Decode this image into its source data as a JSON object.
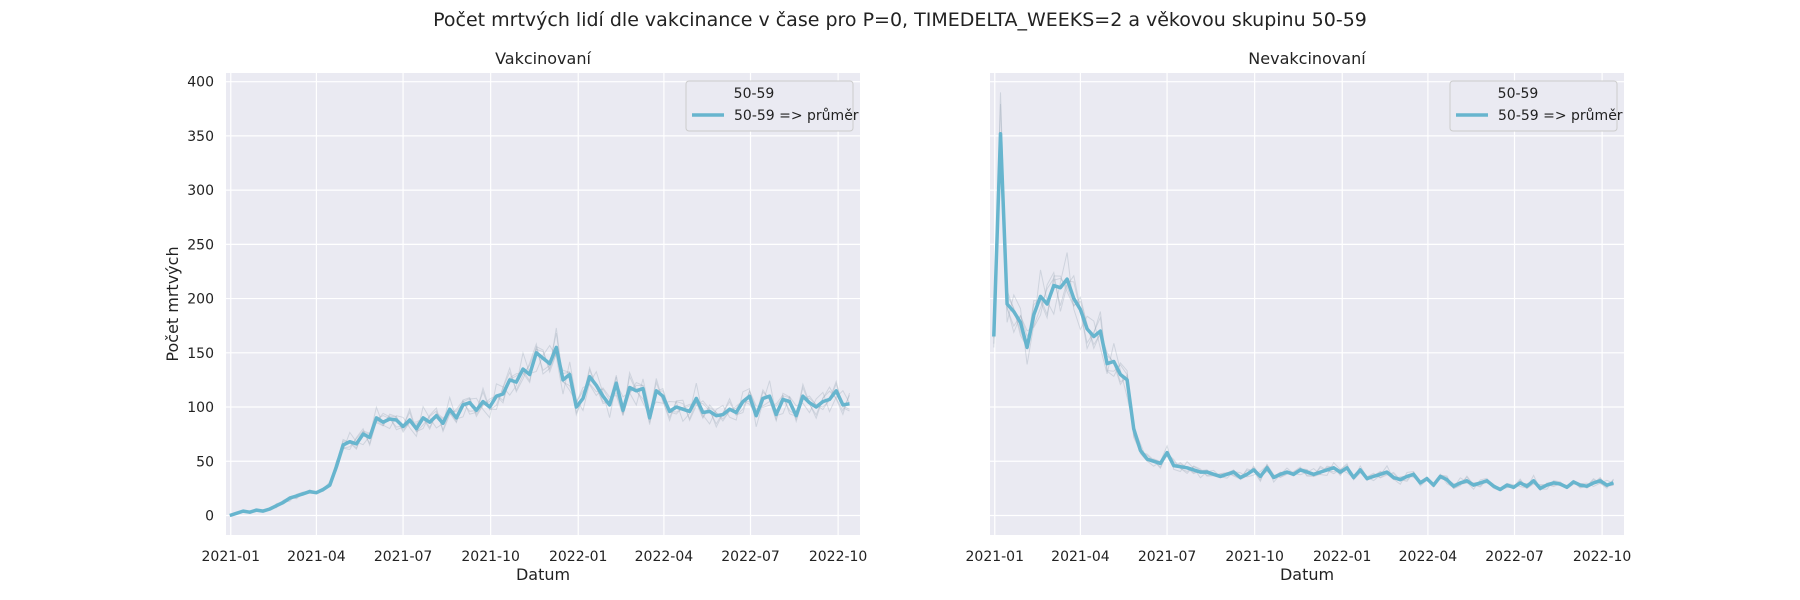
{
  "figure_title": "Počet mrtvých lidí dle vakcinance v čase pro P=0, TIMEDELTA_WEEKS=2 a věkovou skupinu 50-59",
  "colors": {
    "plot_bg": "#eaeaf2",
    "grid": "#ffffff",
    "series": "#67b5ce",
    "band": "#9aa8b8"
  },
  "chart_data": [
    {
      "type": "line",
      "title": "Vakcinovaní",
      "xlabel": "Datum",
      "ylabel": "Počet mrtvých",
      "x_start": "2020-12-27",
      "x_end": "2022-10-24",
      "ylim": [
        -18,
        408
      ],
      "yticks": [
        0,
        50,
        100,
        150,
        200,
        250,
        300,
        350,
        400
      ],
      "xticks": [
        "2021-01",
        "2021-04",
        "2021-07",
        "2021-10",
        "2022-01",
        "2022-04",
        "2022-07",
        "2022-10"
      ],
      "grid": true,
      "legend": {
        "position": "top-right",
        "title": "50-59",
        "entries": [
          "50-59 => průměr"
        ]
      },
      "series": [
        {
          "name": "50-59 => průměr",
          "x": [
            "2020-12-31",
            "2021-01-07",
            "2021-01-14",
            "2021-01-21",
            "2021-01-28",
            "2021-02-04",
            "2021-02-11",
            "2021-02-18",
            "2021-02-25",
            "2021-03-04",
            "2021-03-11",
            "2021-03-18",
            "2021-03-25",
            "2021-04-01",
            "2021-04-08",
            "2021-04-15",
            "2021-04-22",
            "2021-04-29",
            "2021-05-06",
            "2021-05-13",
            "2021-05-20",
            "2021-05-27",
            "2021-06-03",
            "2021-06-10",
            "2021-06-17",
            "2021-06-24",
            "2021-07-01",
            "2021-07-08",
            "2021-07-15",
            "2021-07-22",
            "2021-07-29",
            "2021-08-05",
            "2021-08-12",
            "2021-08-19",
            "2021-08-26",
            "2021-09-02",
            "2021-09-09",
            "2021-09-16",
            "2021-09-23",
            "2021-09-30",
            "2021-10-07",
            "2021-10-14",
            "2021-10-21",
            "2021-10-28",
            "2021-11-04",
            "2021-11-11",
            "2021-11-18",
            "2021-11-25",
            "2021-12-02",
            "2021-12-09",
            "2021-12-16",
            "2021-12-23",
            "2021-12-30",
            "2022-01-06",
            "2022-01-13",
            "2022-01-20",
            "2022-01-27",
            "2022-02-03",
            "2022-02-10",
            "2022-02-17",
            "2022-02-24",
            "2022-03-03",
            "2022-03-10",
            "2022-03-17",
            "2022-03-24",
            "2022-03-31",
            "2022-04-07",
            "2022-04-14",
            "2022-04-21",
            "2022-04-28",
            "2022-05-05",
            "2022-05-12",
            "2022-05-19",
            "2022-05-26",
            "2022-06-02",
            "2022-06-09",
            "2022-06-16",
            "2022-06-23",
            "2022-06-30",
            "2022-07-07",
            "2022-07-14",
            "2022-07-21",
            "2022-07-28",
            "2022-08-04",
            "2022-08-11",
            "2022-08-18",
            "2022-08-25",
            "2022-09-01",
            "2022-09-08",
            "2022-09-15",
            "2022-09-22",
            "2022-09-29",
            "2022-10-06",
            "2022-10-13"
          ],
          "y": [
            0,
            2,
            4,
            3,
            5,
            4,
            6,
            9,
            12,
            16,
            18,
            20,
            22,
            21,
            24,
            28,
            45,
            65,
            68,
            66,
            75,
            72,
            90,
            86,
            89,
            88,
            82,
            88,
            80,
            90,
            86,
            92,
            85,
            98,
            90,
            102,
            104,
            97,
            105,
            100,
            110,
            112,
            125,
            123,
            135,
            130,
            150,
            145,
            140,
            155,
            125,
            130,
            100,
            108,
            128,
            120,
            110,
            102,
            122,
            97,
            118,
            115,
            117,
            90,
            115,
            110,
            96,
            100,
            98,
            96,
            108,
            95,
            96,
            92,
            93,
            98,
            95,
            105,
            110,
            92,
            108,
            110,
            93,
            107,
            105,
            92,
            110,
            104,
            100,
            105,
            107,
            115,
            102,
            103
          ]
        }
      ]
    },
    {
      "type": "line",
      "title": "Nevakcinovaní",
      "xlabel": "Datum",
      "ylabel": "",
      "x_start": "2020-12-27",
      "x_end": "2022-10-24",
      "ylim": [
        -18,
        408
      ],
      "xticks": [
        "2021-01",
        "2021-04",
        "2021-07",
        "2021-10",
        "2022-01",
        "2022-04",
        "2022-07",
        "2022-10"
      ],
      "grid": true,
      "legend": {
        "position": "top-right",
        "title": "50-59",
        "entries": [
          "50-59 => průměr"
        ]
      },
      "series": [
        {
          "name": "50-59 => průměr",
          "x": [
            "2020-12-31",
            "2021-01-07",
            "2021-01-14",
            "2021-01-21",
            "2021-01-28",
            "2021-02-04",
            "2021-02-11",
            "2021-02-18",
            "2021-02-25",
            "2021-03-04",
            "2021-03-11",
            "2021-03-18",
            "2021-03-25",
            "2021-04-01",
            "2021-04-08",
            "2021-04-15",
            "2021-04-22",
            "2021-04-29",
            "2021-05-06",
            "2021-05-13",
            "2021-05-20",
            "2021-05-27",
            "2021-06-03",
            "2021-06-10",
            "2021-06-17",
            "2021-06-24",
            "2021-07-01",
            "2021-07-08",
            "2021-07-15",
            "2021-07-22",
            "2021-07-29",
            "2021-08-05",
            "2021-08-12",
            "2021-08-19",
            "2021-08-26",
            "2021-09-02",
            "2021-09-09",
            "2021-09-16",
            "2021-09-23",
            "2021-09-30",
            "2021-10-07",
            "2021-10-14",
            "2021-10-21",
            "2021-10-28",
            "2021-11-04",
            "2021-11-11",
            "2021-11-18",
            "2021-11-25",
            "2021-12-02",
            "2021-12-09",
            "2021-12-16",
            "2021-12-23",
            "2021-12-30",
            "2022-01-06",
            "2022-01-13",
            "2022-01-20",
            "2022-01-27",
            "2022-02-03",
            "2022-02-10",
            "2022-02-17",
            "2022-02-24",
            "2022-03-03",
            "2022-03-10",
            "2022-03-17",
            "2022-03-24",
            "2022-03-31",
            "2022-04-07",
            "2022-04-14",
            "2022-04-21",
            "2022-04-28",
            "2022-05-05",
            "2022-05-12",
            "2022-05-19",
            "2022-05-26",
            "2022-06-02",
            "2022-06-09",
            "2022-06-16",
            "2022-06-23",
            "2022-06-30",
            "2022-07-07",
            "2022-07-14",
            "2022-07-21",
            "2022-07-28",
            "2022-08-04",
            "2022-08-11",
            "2022-08-18",
            "2022-08-25",
            "2022-09-01",
            "2022-09-08",
            "2022-09-15",
            "2022-09-22",
            "2022-09-29",
            "2022-10-06",
            "2022-10-13"
          ],
          "y": [
            165,
            352,
            195,
            188,
            178,
            155,
            185,
            202,
            195,
            212,
            210,
            218,
            200,
            190,
            172,
            165,
            170,
            140,
            142,
            130,
            125,
            80,
            60,
            52,
            50,
            48,
            58,
            46,
            45,
            44,
            42,
            40,
            40,
            38,
            36,
            38,
            40,
            35,
            38,
            42,
            36,
            44,
            35,
            38,
            40,
            38,
            42,
            40,
            38,
            40,
            42,
            44,
            40,
            44,
            35,
            42,
            34,
            36,
            38,
            40,
            35,
            33,
            36,
            38,
            30,
            34,
            28,
            36,
            33,
            27,
            30,
            32,
            28,
            30,
            32,
            27,
            24,
            28,
            26,
            30,
            27,
            32,
            25,
            28,
            30,
            29,
            26,
            31,
            28,
            27,
            30,
            32,
            28,
            30
          ]
        }
      ]
    }
  ]
}
